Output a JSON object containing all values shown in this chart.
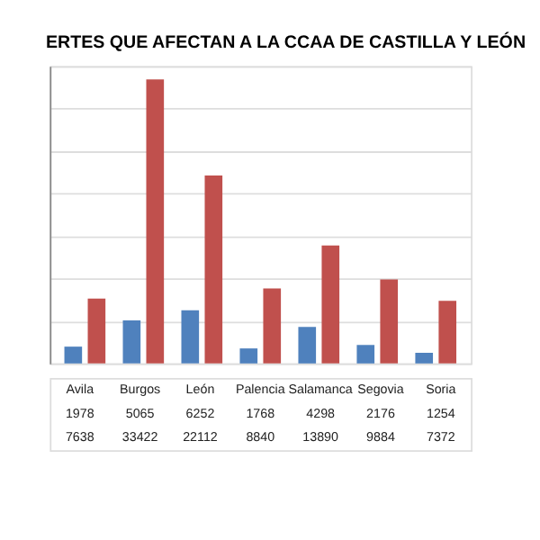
{
  "chart_data": {
    "type": "bar",
    "title": "ERTES QUE AFECTAN A LA CCAA DE CASTILLA Y LEÓN",
    "categories": [
      "Avila",
      "Burgos",
      "León",
      "Palencia",
      "Salamanca",
      "Segovia",
      "Soria"
    ],
    "series": [
      {
        "color": "#4f81bd",
        "values": [
          1978,
          5065,
          6252,
          1768,
          4298,
          2176,
          1254
        ]
      },
      {
        "color": "#c0504d",
        "values": [
          7638,
          33422,
          22112,
          8840,
          13890,
          9884,
          7372
        ]
      }
    ],
    "ylim": [
      0,
      35000
    ],
    "yticks": [
      {
        "value": 0,
        "label": null
      },
      {
        "value": 5000,
        "label": null
      },
      {
        "value": 10000,
        "label": null
      },
      {
        "value": 15000,
        "label": null
      },
      {
        "value": 20000,
        "label": null
      },
      {
        "value": 25000,
        "label": null
      },
      {
        "value": 30000,
        "label": null
      },
      {
        "value": 35000,
        "label": null
      }
    ],
    "grid": "y",
    "data_labels": true
  }
}
